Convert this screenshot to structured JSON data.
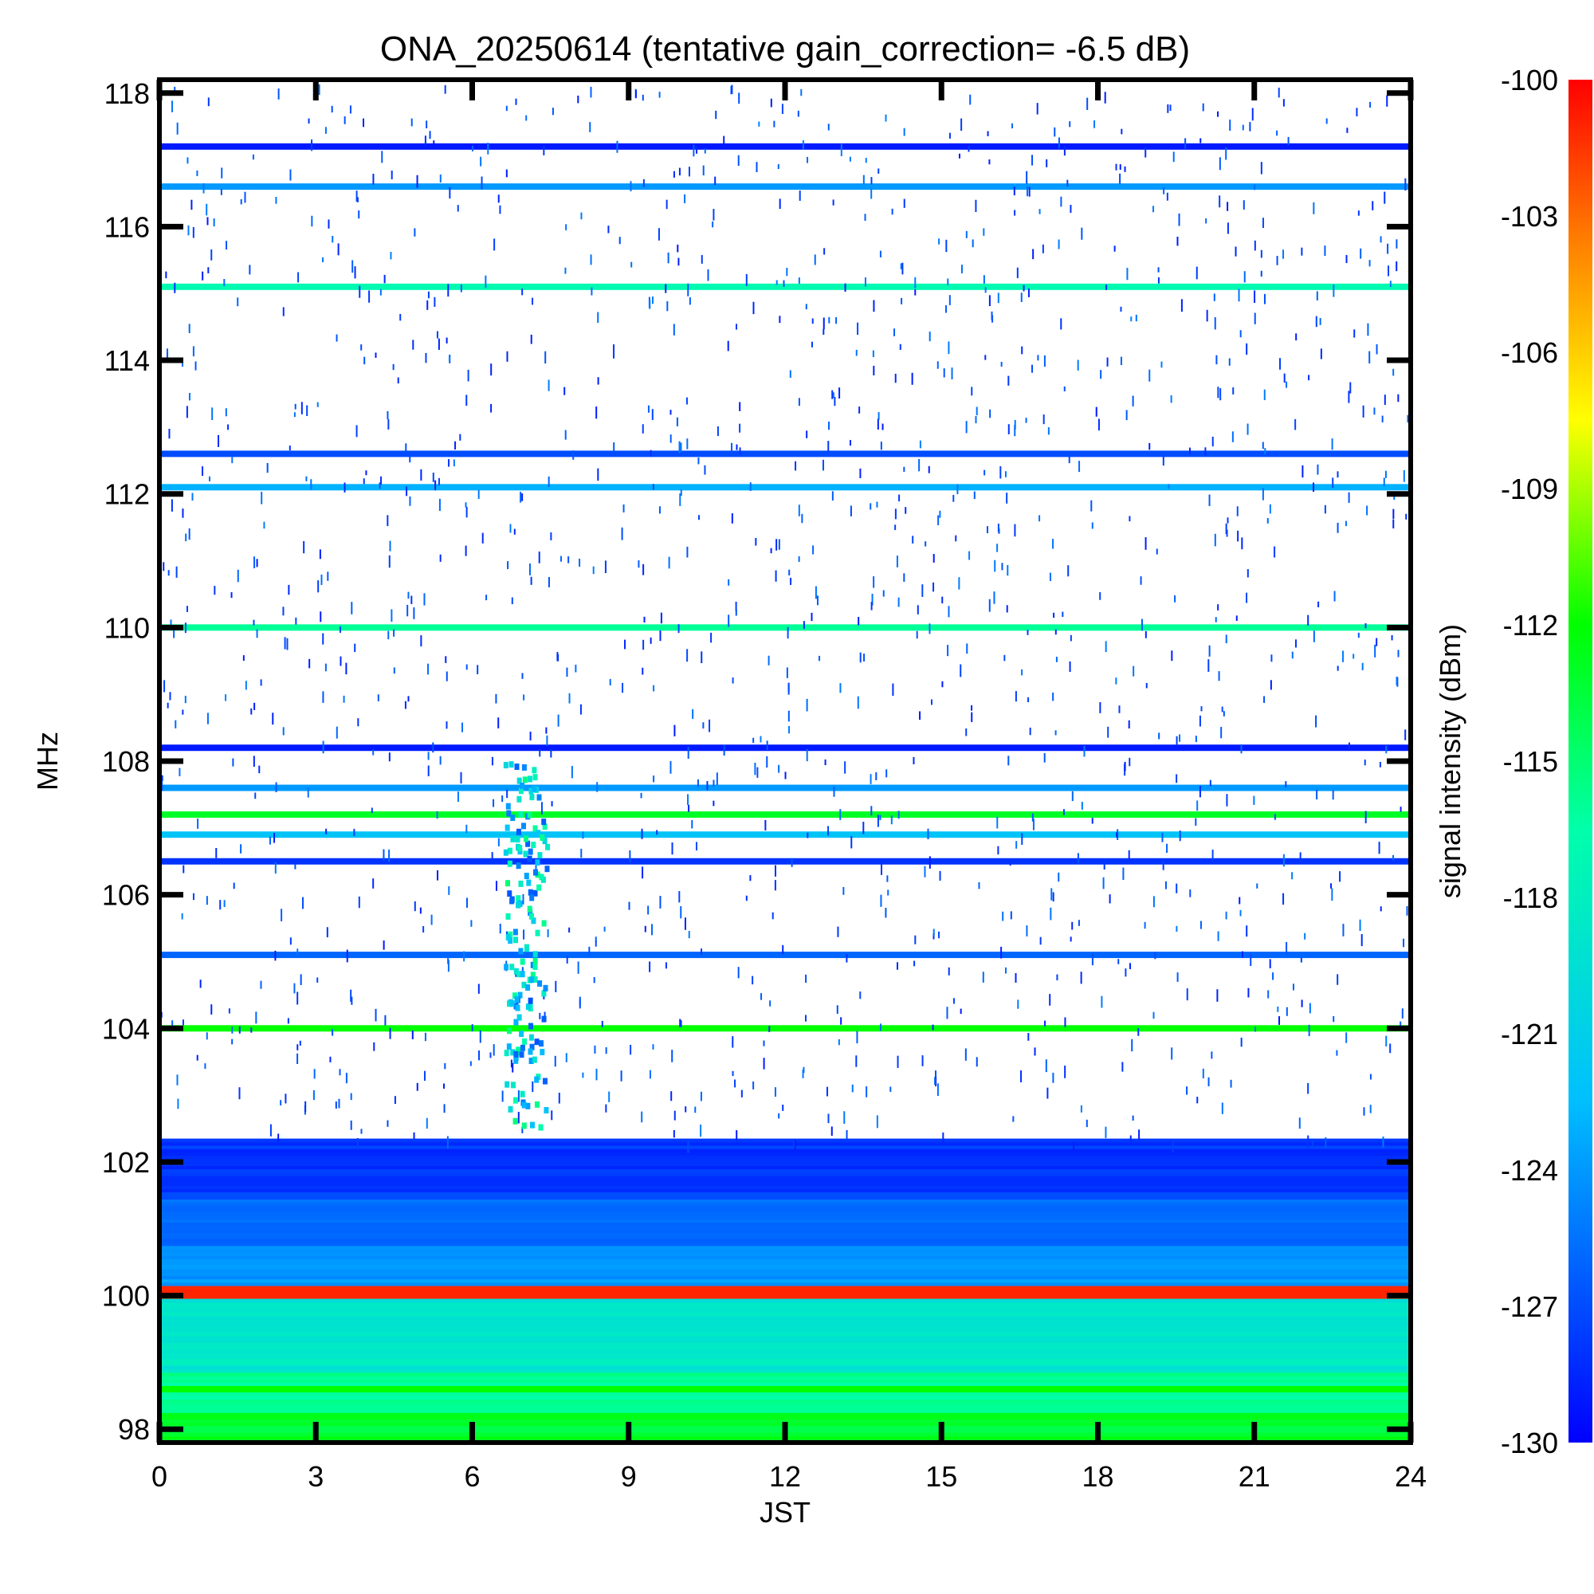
{
  "chart_data": {
    "type": "heatmap",
    "title": "ONA_20250614 (tentative gain_correction= -6.5 dB)",
    "xlabel": "JST",
    "ylabel": "MHz",
    "xlim": [
      0,
      24
    ],
    "ylim": [
      97.8,
      118.2
    ],
    "x_ticks": [
      0,
      3,
      6,
      9,
      12,
      15,
      18,
      21,
      24
    ],
    "y_ticks": [
      98,
      100,
      102,
      104,
      106,
      108,
      110,
      112,
      114,
      116,
      118
    ],
    "colorbar": {
      "label": "signal intensity (dBm)",
      "range": [
        -130,
        -100
      ],
      "ticks": [
        -100,
        -103,
        -106,
        -109,
        -112,
        -115,
        -118,
        -121,
        -124,
        -127,
        -130
      ]
    },
    "bands": [
      {
        "freq_mhz": 98.0,
        "dbm": -114
      },
      {
        "freq_mhz": 98.3,
        "dbm": -116
      },
      {
        "freq_mhz": 98.6,
        "dbm": -112
      },
      {
        "freq_mhz": 99.0,
        "dbm": -118
      },
      {
        "freq_mhz": 99.5,
        "dbm": -119
      },
      {
        "freq_mhz": 100.0,
        "dbm": -101
      },
      {
        "freq_mhz": 100.5,
        "dbm": -124
      },
      {
        "freq_mhz": 101.0,
        "dbm": -126
      },
      {
        "freq_mhz": 101.5,
        "dbm": -127
      },
      {
        "freq_mhz": 102.0,
        "dbm": -128
      },
      {
        "freq_mhz": 104.0,
        "dbm": -112
      },
      {
        "freq_mhz": 105.1,
        "dbm": -126
      },
      {
        "freq_mhz": 106.5,
        "dbm": -128
      },
      {
        "freq_mhz": 106.9,
        "dbm": -122
      },
      {
        "freq_mhz": 107.2,
        "dbm": -113
      },
      {
        "freq_mhz": 107.6,
        "dbm": -124
      },
      {
        "freq_mhz": 108.2,
        "dbm": -129
      },
      {
        "freq_mhz": 110.0,
        "dbm": -116
      },
      {
        "freq_mhz": 112.1,
        "dbm": -123
      },
      {
        "freq_mhz": 112.6,
        "dbm": -127
      },
      {
        "freq_mhz": 115.1,
        "dbm": -117
      },
      {
        "freq_mhz": 116.6,
        "dbm": -124
      },
      {
        "freq_mhz": 117.2,
        "dbm": -129
      }
    ]
  }
}
